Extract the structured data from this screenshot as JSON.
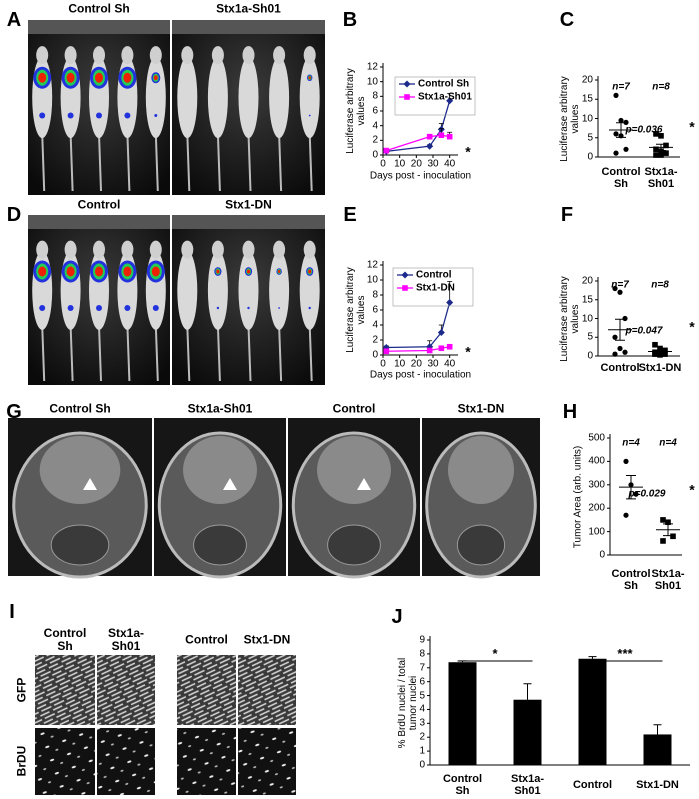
{
  "figure": {
    "panels": [
      {
        "letter": "A",
        "labels": [
          "Control Sh",
          "Stx1a-Sh01"
        ]
      },
      {
        "letter": "D",
        "labels": [
          "Control",
          "Stx1-DN"
        ]
      },
      {
        "letter": "G",
        "labels": [
          "Control Sh",
          "Stx1a-Sh01",
          "Control",
          "Stx1-DN"
        ]
      },
      {
        "letter": "I",
        "columns": [
          "Control Sh",
          "Stx1a-Sh01",
          "Control",
          "Stx1-DN"
        ],
        "rows": [
          "GFP",
          "BrDU"
        ]
      }
    ]
  },
  "chart_data": [
    {
      "panel": "B",
      "type": "line",
      "x": [
        2,
        28,
        35,
        40
      ],
      "xlim": [
        0,
        45
      ],
      "xticks": [
        0,
        10,
        20,
        30,
        40
      ],
      "ylim": [
        0,
        12
      ],
      "yticks": [
        0,
        2,
        4,
        6,
        8,
        10,
        12
      ],
      "xlabel": "Days post - inoculation",
      "ylabel": "Luciferase arbitrary values",
      "series": [
        {
          "name": "Control Sh",
          "color": "#1c2a8c",
          "marker": "diamond",
          "values": [
            0.5,
            1.2,
            3.5,
            7.4
          ],
          "errors": [
            0.1,
            0.2,
            0.8,
            1.0
          ]
        },
        {
          "name": "Stx1a-Sh01",
          "color": "#ff00ff",
          "marker": "square",
          "values": [
            0.6,
            2.5,
            2.7,
            2.5
          ],
          "errors": [
            0.1,
            0.3,
            0.9,
            0.6
          ]
        }
      ],
      "annotation": "*"
    },
    {
      "panel": "C",
      "type": "dot",
      "categories": [
        "Control Sh",
        "Stx1a-Sh01"
      ],
      "points": [
        [
          16,
          9.5,
          9,
          6,
          5.5,
          2,
          1
        ],
        [
          6,
          5.5,
          3,
          2,
          1.5,
          1,
          0.5,
          0.5
        ]
      ],
      "means": [
        7,
        2.5
      ],
      "sems": [
        1.9,
        0.8
      ],
      "markers": [
        "circle",
        "square"
      ],
      "color": "#000000",
      "ylim": [
        0,
        20
      ],
      "yticks": [
        0,
        5,
        10,
        15,
        20
      ],
      "ylabel": "Luciferase arbitrary values",
      "n_labels": [
        "n=7",
        "n=8"
      ],
      "p_label": "p=0.036",
      "significance": "*"
    },
    {
      "panel": "E",
      "type": "line",
      "x": [
        2,
        28,
        35,
        40
      ],
      "xlim": [
        0,
        45
      ],
      "xticks": [
        0,
        10,
        20,
        30,
        40
      ],
      "ylim": [
        0,
        12
      ],
      "yticks": [
        0,
        2,
        4,
        6,
        8,
        10,
        12
      ],
      "xlabel": "Days post - inoculation",
      "ylabel": "Luciferase arbitrary values",
      "series": [
        {
          "name": "Control",
          "color": "#1c2a8c",
          "marker": "diamond",
          "values": [
            1.0,
            1.1,
            3.0,
            7.0
          ],
          "errors": [
            0.2,
            0.8,
            1.0,
            2.8
          ]
        },
        {
          "name": "Stx1-DN",
          "color": "#ff00ff",
          "marker": "square",
          "values": [
            0.5,
            0.6,
            0.9,
            1.1
          ],
          "errors": [
            0.1,
            0.1,
            0.2,
            0.3
          ]
        }
      ],
      "annotation": "*"
    },
    {
      "panel": "F",
      "type": "dot",
      "categories": [
        "Control",
        "Stx1-DN"
      ],
      "points": [
        [
          18,
          17,
          10,
          5,
          2,
          1,
          0.5
        ],
        [
          3,
          2,
          1.5,
          1,
          1,
          0.5,
          0.5,
          0.3
        ]
      ],
      "means": [
        7,
        1.2
      ],
      "sems": [
        2.8,
        0.35
      ],
      "markers": [
        "circle",
        "square"
      ],
      "color": "#000000",
      "ylim": [
        0,
        20
      ],
      "yticks": [
        0,
        5,
        10,
        15,
        20
      ],
      "ylabel": "Luciferase arbitrary values",
      "n_labels": [
        "n=7",
        "n=8"
      ],
      "p_label": "p=0.047",
      "significance": "*"
    },
    {
      "panel": "H",
      "type": "dot",
      "categories": [
        "Control Sh",
        "Stx1a-Sh01"
      ],
      "points": [
        [
          400,
          300,
          260,
          170
        ],
        [
          150,
          140,
          80,
          60
        ]
      ],
      "means": [
        290,
        108
      ],
      "sems": [
        50,
        25
      ],
      "markers": [
        "circle",
        "square"
      ],
      "color": "#000000",
      "ylim": [
        0,
        500
      ],
      "yticks": [
        0,
        100,
        200,
        300,
        400,
        500
      ],
      "ylabel": "Tumor Area (arb. units)",
      "n_labels": [
        "n=4",
        "n=4"
      ],
      "p_label": "p=0.029",
      "significance": "*"
    },
    {
      "panel": "J",
      "type": "bar",
      "categories": [
        "Control Sh",
        "Stx1a-Sh01",
        "Control",
        "Stx1-DN"
      ],
      "values": [
        7.4,
        4.7,
        7.65,
        2.2
      ],
      "errors": [
        0.1,
        1.15,
        0.15,
        0.7
      ],
      "color": "#000000",
      "ylim": [
        0,
        9
      ],
      "yticks": [
        0,
        1,
        2,
        3,
        4,
        5,
        6,
        7,
        8,
        9
      ],
      "ylabel": "% BrdU nuclei / total tumor nuclei",
      "significance": [
        "*",
        "***"
      ]
    }
  ]
}
